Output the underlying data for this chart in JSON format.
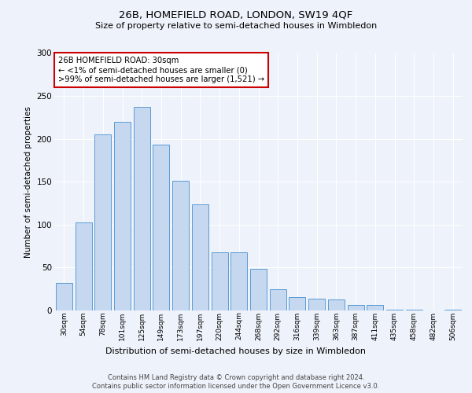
{
  "title1": "26B, HOMEFIELD ROAD, LONDON, SW19 4QF",
  "title2": "Size of property relative to semi-detached houses in Wimbledon",
  "xlabel": "Distribution of semi-detached houses by size in Wimbledon",
  "ylabel": "Number of semi-detached properties",
  "categories": [
    "30sqm",
    "54sqm",
    "78sqm",
    "101sqm",
    "125sqm",
    "149sqm",
    "173sqm",
    "197sqm",
    "220sqm",
    "244sqm",
    "268sqm",
    "292sqm",
    "316sqm",
    "339sqm",
    "363sqm",
    "387sqm",
    "411sqm",
    "435sqm",
    "458sqm",
    "482sqm",
    "506sqm"
  ],
  "values": [
    32,
    103,
    205,
    220,
    237,
    193,
    151,
    124,
    68,
    68,
    49,
    25,
    16,
    14,
    13,
    6,
    6,
    1,
    1,
    0,
    1
  ],
  "bar_color": "#c5d8f0",
  "bar_edge_color": "#5b9bd5",
  "annotation_title": "26B HOMEFIELD ROAD: 30sqm",
  "annotation_line1": "← <1% of semi-detached houses are smaller (0)",
  "annotation_line2": ">99% of semi-detached houses are larger (1,521) →",
  "annotation_box_edge": "#cc0000",
  "ylim": [
    0,
    300
  ],
  "yticks": [
    0,
    50,
    100,
    150,
    200,
    250,
    300
  ],
  "footer1": "Contains HM Land Registry data © Crown copyright and database right 2024.",
  "footer2": "Contains public sector information licensed under the Open Government Licence v3.0.",
  "bg_color": "#eef2fa",
  "plot_bg_color": "#eef2fa"
}
